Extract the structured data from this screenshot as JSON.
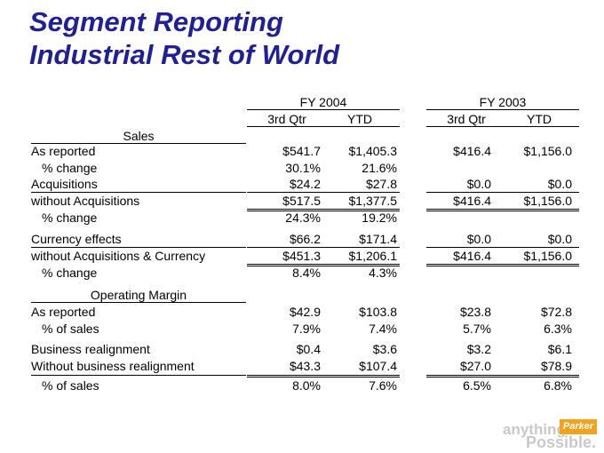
{
  "title_lines": [
    "Segment Reporting",
    "Industrial Rest of World"
  ],
  "years": [
    "FY 2004",
    "FY 2003"
  ],
  "subheaders": [
    "3rd Qtr",
    "YTD",
    "3rd Qtr",
    "YTD"
  ],
  "sections": [
    "Sales",
    "Operating Margin"
  ],
  "rows": [
    {
      "label": "As reported",
      "values": [
        "$541.7",
        "$1,405.3",
        "$416.4",
        "$1,156.0"
      ]
    },
    {
      "label": "% change",
      "values": [
        "30.1%",
        "21.6%",
        "",
        ""
      ]
    },
    {
      "label": "Acquisitions",
      "values": [
        "$24.2",
        "$27.8",
        "$0.0",
        "$0.0"
      ]
    },
    {
      "label": "without Acquisitions",
      "values": [
        "$517.5",
        "$1,377.5",
        "$416.4",
        "$1,156.0"
      ]
    },
    {
      "label": "% change",
      "values": [
        "24.3%",
        "19.2%",
        "",
        ""
      ]
    },
    {
      "label": "Currency effects",
      "values": [
        "$66.2",
        "$171.4",
        "$0.0",
        "$0.0"
      ]
    },
    {
      "label": "without Acquisitions & Currency",
      "values": [
        "$451.3",
        "$1,206.1",
        "$416.4",
        "$1,156.0"
      ]
    },
    {
      "label": "% change",
      "values": [
        "8.4%",
        "4.3%",
        "",
        ""
      ]
    },
    {
      "label": "As reported",
      "values": [
        "$42.9",
        "$103.8",
        "$23.8",
        "$72.8"
      ]
    },
    {
      "label": "% of sales",
      "values": [
        "7.9%",
        "7.4%",
        "5.7%",
        "6.3%"
      ]
    },
    {
      "label": "Business realignment",
      "values": [
        "$0.4",
        "$3.6",
        "$3.2",
        "$6.1"
      ]
    },
    {
      "label": "Without business realignment",
      "values": [
        "$43.3",
        "$107.4",
        "$27.0",
        "$78.9"
      ]
    },
    {
      "label": "% of sales",
      "values": [
        "8.0%",
        "7.6%",
        "6.5%",
        "6.8%"
      ]
    }
  ],
  "logo": {
    "word1": "anything",
    "word2": "Possible.",
    "badge": "Parker"
  }
}
